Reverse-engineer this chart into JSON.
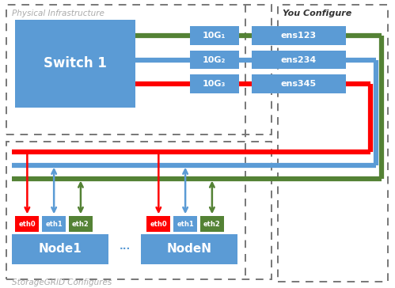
{
  "bg_color": "#ffffff",
  "box_blue": "#5b9bd5",
  "box_red": "#cc0000",
  "box_green": "#548235",
  "line_red": "#ff0000",
  "line_blue": "#5b9bd5",
  "line_green": "#548235",
  "text_gray": "#aaaaaa",
  "text_black": "#333333",
  "text_white": "#ffffff",
  "dashed_border": "#777777",
  "title_physical": "Physical Infrastructure",
  "title_you": "You Configure",
  "title_storage": "StorageGRID Configures",
  "switch_label": "Switch 1",
  "port_labels": [
    "10G₁",
    "10G₂",
    "10G₃"
  ],
  "ens_labels": [
    "ens123",
    "ens234",
    "ens345"
  ],
  "eth_labels": [
    "eth0",
    "eth1",
    "eth2"
  ],
  "node1_label": "Node1",
  "nodeN_label": "NodeN",
  "dots": "···"
}
